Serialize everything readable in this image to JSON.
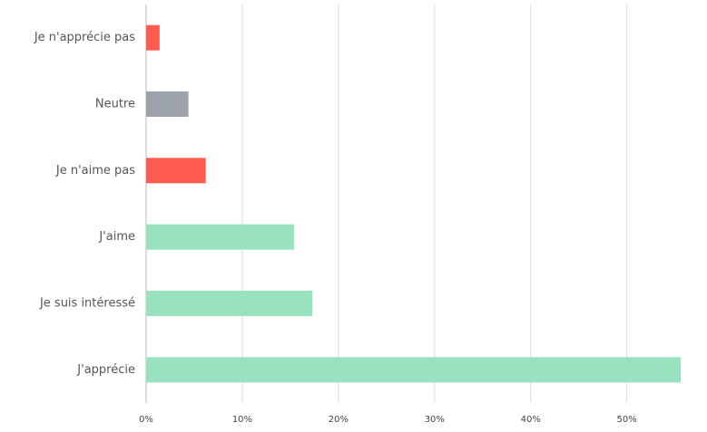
{
  "chart_data": {
    "type": "hbar",
    "categories": [
      "Je n'apprécie pas",
      "Neutre",
      "Je n'aime pas",
      "J'aime",
      "Je suis intéressé",
      "J'apprécie"
    ],
    "values": [
      1.4,
      4.4,
      6.2,
      15.4,
      17.3,
      55.6
    ],
    "colors": [
      "#ff5b4f",
      "#9ca3ab",
      "#ff5b4f",
      "#98e2c0",
      "#98e2c0",
      "#98e2c0"
    ],
    "xlim": [
      0,
      55.6
    ],
    "xticks": [
      {
        "value": 0,
        "label": "0%"
      },
      {
        "value": 10,
        "label": "10%"
      },
      {
        "value": 20,
        "label": "20%"
      },
      {
        "value": 30,
        "label": "30%"
      },
      {
        "value": 40,
        "label": "40%"
      },
      {
        "value": 50,
        "label": "50%"
      }
    ],
    "grid": true
  }
}
